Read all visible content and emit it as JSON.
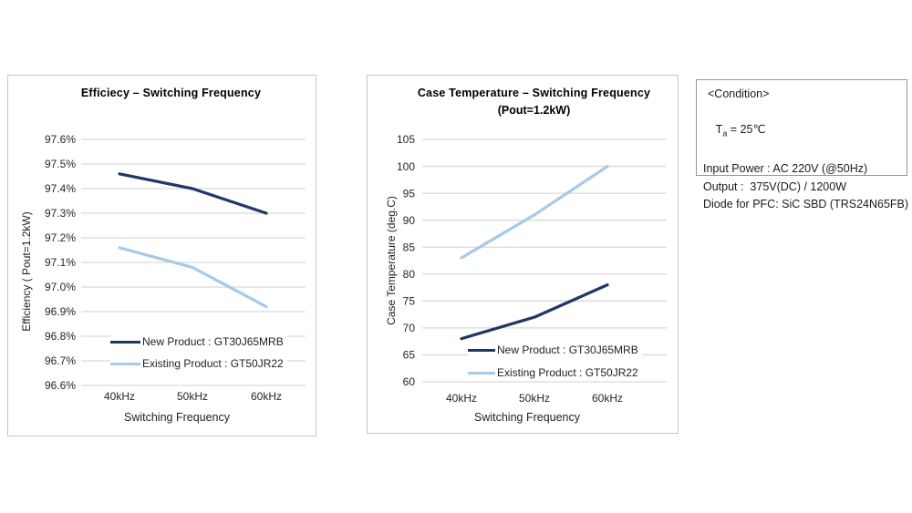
{
  "colors": {
    "navy": "#1F3864",
    "light_blue": "#A8C9E8",
    "grid": "#D9D9D9",
    "chart_border": "#C6C6C6",
    "condition_border": "#969696"
  },
  "chart_data": [
    {
      "type": "line",
      "title": "Efficiecy – Switching Frequency",
      "xlabel": "Switching Frequency",
      "ylabel": "Efficiency ( Pout=1.2kW)",
      "categories": [
        "40kHz",
        "50kHz",
        "60kHz"
      ],
      "series": [
        {
          "name": "New Product : GT30J65MRB",
          "color": "#1F3864",
          "values": [
            97.46,
            97.4,
            97.3
          ]
        },
        {
          "name": "Existing Product : GT50JR22",
          "color": "#A8C9E8",
          "values": [
            97.16,
            97.08,
            96.92
          ]
        }
      ],
      "ylim": [
        96.6,
        97.6
      ],
      "ytick_step": 0.1,
      "ytick_decimals": 1,
      "ytick_suffix": "%",
      "grid": true,
      "legend_position": "inside-bottom-left"
    },
    {
      "type": "line",
      "title": "Case Temperature – Switching Frequency",
      "subtitle": "(Pout=1.2kW)",
      "xlabel": "Switching Frequency",
      "ylabel": "Case Temperature (deg.C)",
      "categories": [
        "40kHz",
        "50kHz",
        "60kHz"
      ],
      "series": [
        {
          "name": "New Product : GT30J65MRB",
          "color": "#1F3864",
          "values": [
            68,
            72,
            78
          ]
        },
        {
          "name": "Existing Product : GT50JR22",
          "color": "#A8C9E8",
          "values": [
            83,
            91,
            100
          ]
        }
      ],
      "ylim": [
        60,
        105
      ],
      "ytick_step": 5,
      "ytick_decimals": 0,
      "ytick_suffix": "",
      "grid": true,
      "legend_position": "inside-bottom-left"
    }
  ],
  "condition": {
    "title": "<Condition>",
    "ta": {
      "pre": "T",
      "sub": "a",
      "post": " = 25℃"
    },
    "lines": [
      "Input Power : AC 220V (@50Hz)",
      "Output :  375V(DC) / 1200W",
      "Diode for PFC: SiC SBD (TRS24N65FB)"
    ]
  }
}
